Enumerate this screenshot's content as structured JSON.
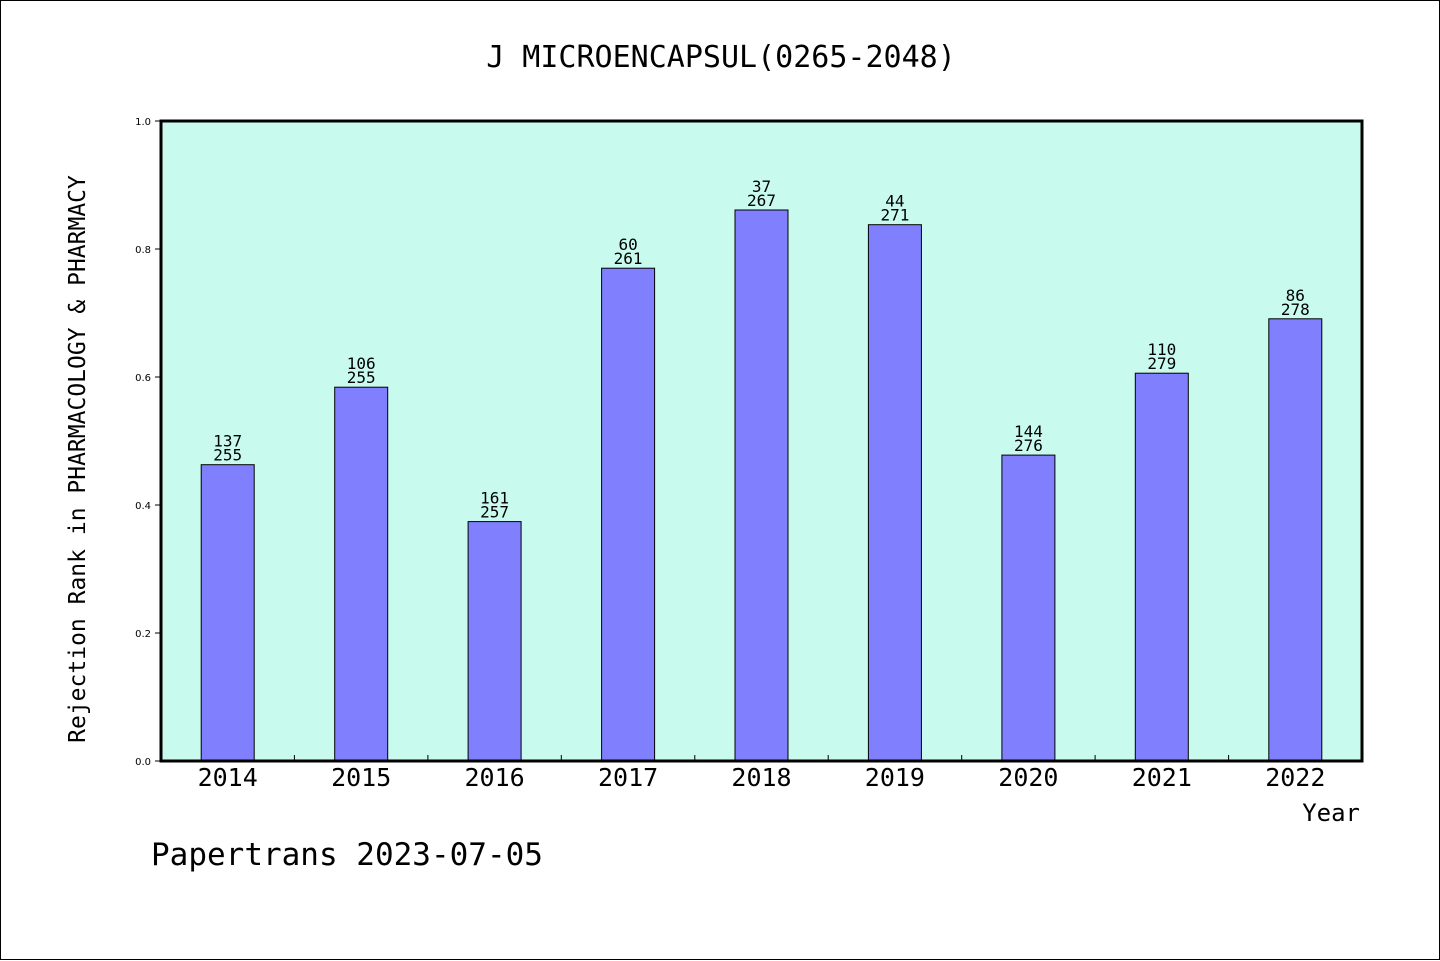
{
  "chart_data": {
    "type": "bar",
    "title": "J MICROENCAPSUL(0265-2048)",
    "xlabel": "Year",
    "ylabel": "Rejection Rank in PHARMACOLOGY & PHARMACY",
    "ylim": [
      0.0,
      1.0
    ],
    "yticks": [
      "0.0",
      "0.2",
      "0.4",
      "0.6",
      "0.8",
      "1.0"
    ],
    "grid": false,
    "categories": [
      "2014",
      "2015",
      "2016",
      "2017",
      "2018",
      "2019",
      "2020",
      "2021",
      "2022"
    ],
    "values": [
      0.463,
      0.584,
      0.374,
      0.77,
      0.861,
      0.838,
      0.478,
      0.606,
      0.691
    ],
    "annotations": [
      {
        "top": "137",
        "bottom": "255"
      },
      {
        "top": "106",
        "bottom": "255"
      },
      {
        "top": "161",
        "bottom": "257"
      },
      {
        "top": "60",
        "bottom": "261"
      },
      {
        "top": "37",
        "bottom": "267"
      },
      {
        "top": "44",
        "bottom": "271"
      },
      {
        "top": "144",
        "bottom": "276"
      },
      {
        "top": "110",
        "bottom": "279"
      },
      {
        "top": "86",
        "bottom": "278"
      }
    ],
    "colors": {
      "plot_background": "#c8fbee",
      "bar_fill": "#8080ff",
      "bar_stroke": "#000000"
    }
  },
  "footer": {
    "text": "Papertrans 2023-07-05"
  }
}
